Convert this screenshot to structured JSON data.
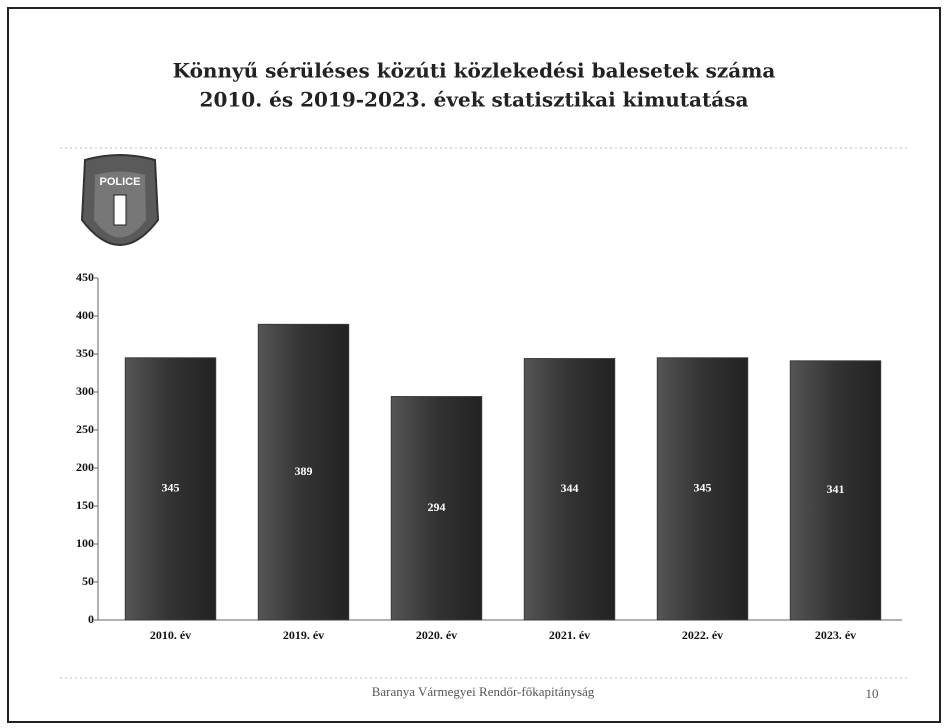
{
  "chart_data": {
    "type": "bar",
    "title": [
      "Könnyű sérüléses közúti közlekedési balesetek száma",
      "2010. és 2019-2023. évek statisztikai kimutatása"
    ],
    "categories": [
      "2010. év",
      "2019. év",
      "2020. év",
      "2021. év",
      "2022. év",
      "2023. év"
    ],
    "values": [
      345,
      389,
      294,
      344,
      345,
      341
    ],
    "color": "#3a3a3a",
    "ylim": [
      0,
      450
    ],
    "yticks": [
      0,
      50,
      100,
      150,
      200,
      250,
      300,
      350,
      400,
      450
    ],
    "grid": false
  },
  "logo": {
    "text": "POLICE"
  },
  "footer": {
    "text": "Baranya Vármegyei Rendőr-főkapitányság",
    "page": "10"
  }
}
